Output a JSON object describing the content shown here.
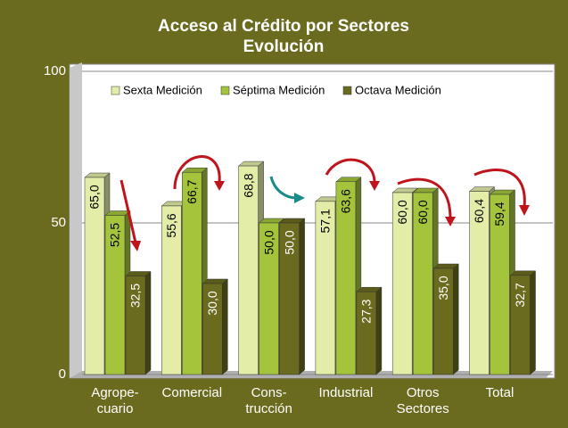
{
  "chart_data": {
    "type": "bar",
    "title": "Acceso al Crédito por Sectores",
    "subtitle": "Evolución",
    "categories": [
      "Agrope-\ncuario",
      "Comercial",
      "Cons-\ntrucción",
      "Industrial",
      "Otros\nSectores",
      "Total"
    ],
    "series": [
      {
        "name": "Sexta Medición",
        "color": "#e3eda8",
        "values": [
          65.0,
          55.6,
          68.8,
          57.1,
          60.0,
          60.4
        ],
        "value_labels": [
          "65,0",
          "55,6",
          "68,8",
          "57,1",
          "60,0",
          "60,4"
        ]
      },
      {
        "name": "Séptima Medición",
        "color": "#a4c43c",
        "values": [
          52.5,
          66.7,
          50.0,
          63.6,
          60.0,
          59.4
        ],
        "value_labels": [
          "52,5",
          "66,7",
          "50,0",
          "63,6",
          "60,0",
          "59,4"
        ]
      },
      {
        "name": "Octava Medición",
        "color": "#6b6b1f",
        "values": [
          32.5,
          30.0,
          50.0,
          27.3,
          35.0,
          32.7
        ],
        "value_labels": [
          "32,5",
          "30,0",
          "50,0",
          "27,3",
          "35,0",
          "32,7"
        ]
      }
    ],
    "ylim": [
      0,
      100
    ],
    "yticks": [
      0,
      50,
      100
    ],
    "grid": true,
    "legend": "top"
  }
}
